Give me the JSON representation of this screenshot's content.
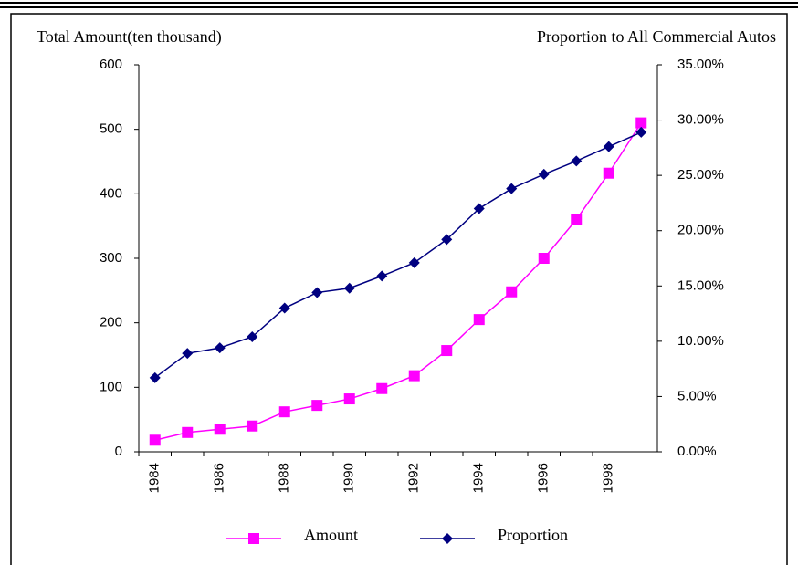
{
  "chart_data": {
    "type": "line",
    "y_label": "Total Amount(ten thousand)",
    "y2_label": "Proportion to All Commercial Autos",
    "categories": [
      "1984",
      null,
      "1986",
      null,
      "1988",
      null,
      "1990",
      null,
      "1992",
      null,
      "1994",
      null,
      "1996",
      null,
      "1998",
      null
    ],
    "series": [
      {
        "name": "Amount",
        "color": "#ff00ff",
        "marker": "square",
        "values": [
          18,
          30,
          35,
          40,
          62,
          72,
          82,
          98,
          118,
          157,
          205,
          248,
          300,
          360,
          432,
          510
        ]
      },
      {
        "name": "Proportion",
        "color": "#000080",
        "marker": "diamond",
        "axis": "y2",
        "values": [
          6.7,
          8.9,
          9.4,
          10.4,
          13.0,
          14.4,
          14.8,
          15.9,
          17.1,
          19.2,
          22.0,
          23.8,
          25.1,
          26.3,
          27.6,
          28.9
        ]
      }
    ],
    "ylim": [
      0,
      600
    ],
    "yticks": [
      0,
      100,
      200,
      300,
      400,
      500,
      600
    ],
    "y2lim": [
      0,
      35
    ],
    "y2ticks": [
      {
        "value": 0,
        "label": "0.00%"
      },
      {
        "value": 5,
        "label": "5.00%"
      },
      {
        "value": 10,
        "label": "10.00%"
      },
      {
        "value": 15,
        "label": "15.00%"
      },
      {
        "value": 20,
        "label": "20.00%"
      },
      {
        "value": 25,
        "label": "25.00%"
      },
      {
        "value": 30,
        "label": "30.00%"
      },
      {
        "value": 35,
        "label": "35.00%"
      }
    ],
    "legend": "bottom"
  }
}
